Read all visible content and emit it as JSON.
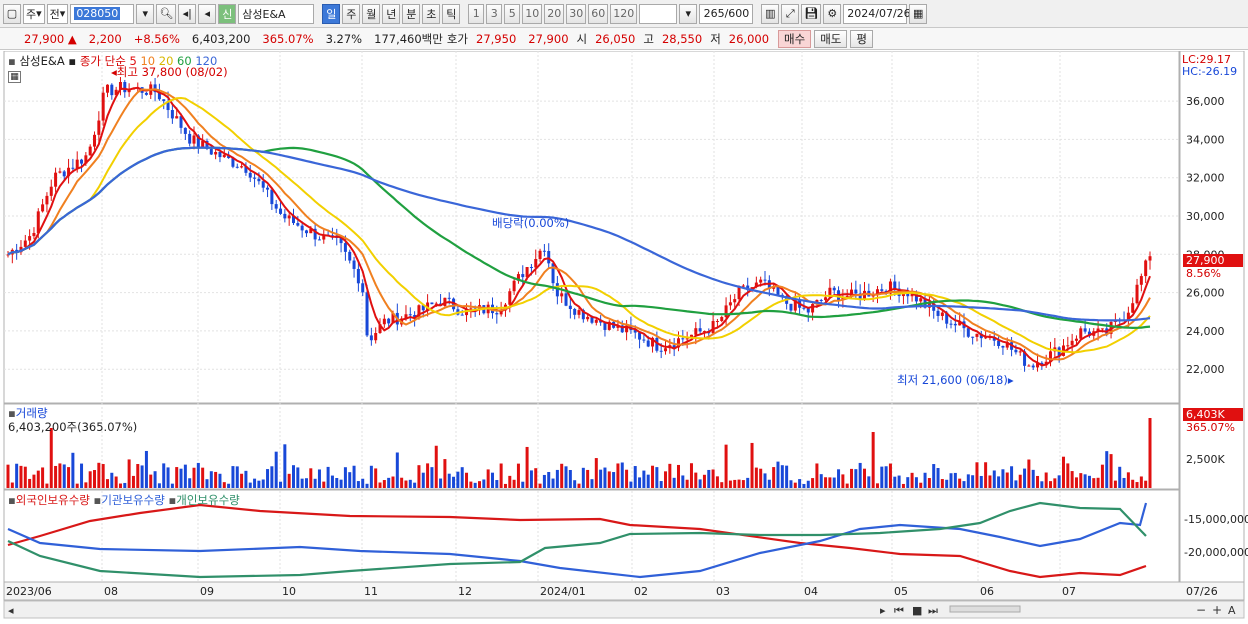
{
  "toolbar": {
    "period_main": "주",
    "prev_label": "전",
    "stock_code": "028050",
    "stock_name_badge": "신",
    "stock_name": "삼성E&A",
    "periods": [
      "일",
      "주",
      "월",
      "년",
      "분",
      "초",
      "틱"
    ],
    "active_period": "일",
    "intervals": [
      "1",
      "3",
      "5",
      "10",
      "20",
      "30",
      "60",
      "120"
    ],
    "count": "265",
    "count_total": "/600",
    "date": "2024/07/26"
  },
  "info": {
    "price": "27,900",
    "arrow": "▲",
    "change": "2,200",
    "change_pct": "+8.56%",
    "volume": "6,403,200",
    "volume_ratio": "365.07%",
    "turnover": "3.27%",
    "amount": "177,460백만",
    "bid_label": "호가",
    "bid": "27,950",
    "ask": "27,900",
    "open_label": "시",
    "open": "26,050",
    "high_label": "고",
    "high": "28,550",
    "low_label": "저",
    "low": "26,000",
    "buy_label": "매수",
    "sell_label": "매도",
    "eval_label": "평"
  },
  "price_panel": {
    "legend_name": "삼성E&A",
    "legend_type": "종가 단순",
    "ma_periods": [
      "5",
      "10",
      "20",
      "60",
      "120"
    ],
    "ma_colors": [
      "#e01010",
      "#f08020",
      "#f2d000",
      "#20a040",
      "#3a66d8"
    ],
    "high_marker": "최고 37,800 (08/02)",
    "low_marker": "최저 21,600 (06/18)",
    "dividend_marker": "배당락(0.00%)",
    "lc": "LC:29.17",
    "hc": "HC:-26.19",
    "last_price_tag": "27,900",
    "last_pct_tag": "8.56%"
  },
  "volume_panel": {
    "title": "거래량",
    "last": "6,403,200주(365.07%)",
    "tag_value": "6,403K",
    "tag_pct": "365.07%",
    "axis_label": "2,500K"
  },
  "holding_panel": {
    "legend": [
      "외국인보유수량",
      "기관보유수량",
      "개인보유수량"
    ],
    "colors": [
      "#d81818",
      "#3060d8",
      "#30906a"
    ],
    "axis_labels": [
      "-15,000,000",
      "-20,000,000"
    ]
  },
  "x_axis": {
    "labels": [
      "2023/06",
      "08",
      "09",
      "10",
      "11",
      "12",
      "2024/01",
      "02",
      "03",
      "04",
      "05",
      "06",
      "07",
      "07/26"
    ]
  },
  "chart_data": {
    "type": "candlestick",
    "y_ticks": [
      22000,
      24000,
      26000,
      28000,
      30000,
      32000,
      34000,
      36000
    ],
    "ylim": [
      20600,
      38200
    ],
    "highest": {
      "value": 37800,
      "date": "08/02"
    },
    "lowest": {
      "value": 21600,
      "date": "06/18"
    },
    "last_close": 27900,
    "series": [
      {
        "name": "5",
        "color": "#e01010"
      },
      {
        "name": "10",
        "color": "#f08020"
      },
      {
        "name": "20",
        "color": "#f2d000"
      },
      {
        "name": "60",
        "color": "#20a040"
      },
      {
        "name": "120",
        "color": "#3a66d8"
      }
    ]
  }
}
